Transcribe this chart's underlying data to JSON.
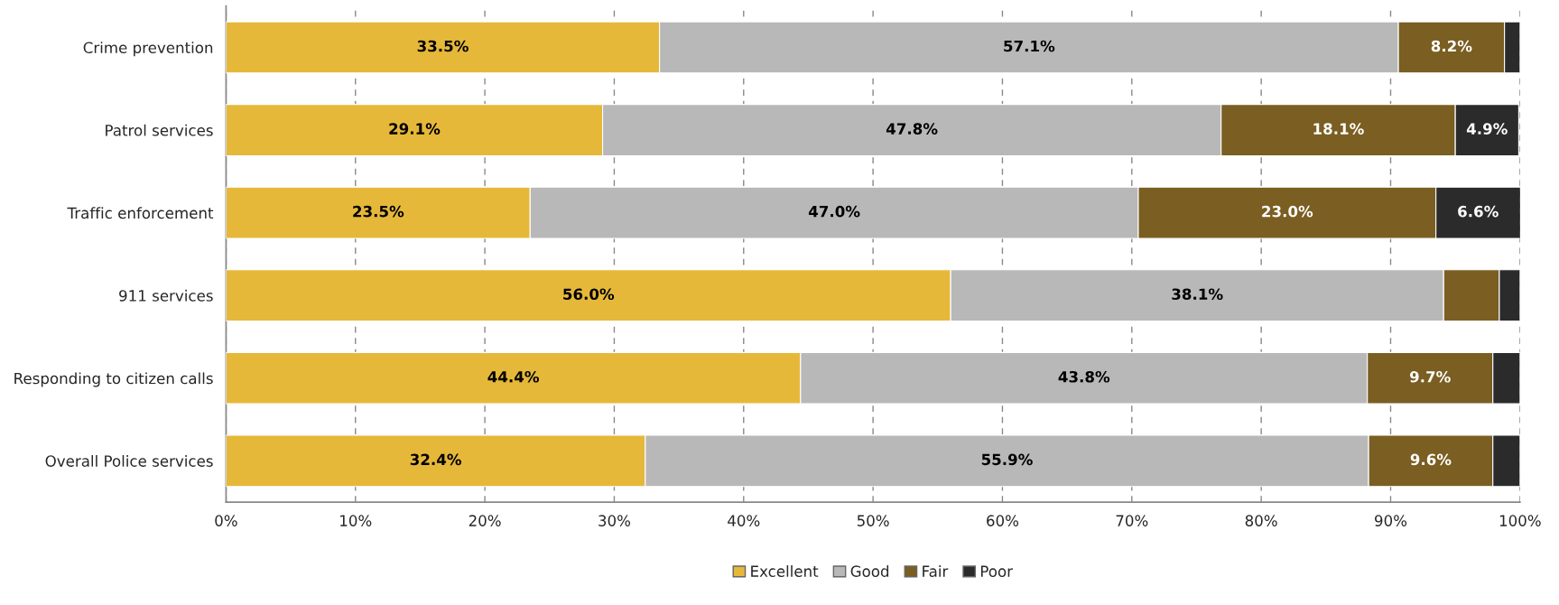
{
  "chart_data": {
    "type": "bar",
    "orientation": "horizontal",
    "stacked": true,
    "categories": [
      "Crime prevention",
      "Patrol services",
      "Traffic enforcement",
      "911 services",
      "Responding to citizen calls",
      "Overall Police services"
    ],
    "series": [
      {
        "name": "Excellent",
        "color": "#e6b83a",
        "values": [
          33.5,
          29.1,
          23.5,
          56.0,
          44.4,
          32.4
        ],
        "value_labels": [
          "33.5%",
          "29.1%",
          "23.5%",
          "56.0%",
          "44.4%",
          "32.4%"
        ]
      },
      {
        "name": "Good",
        "color": "#b8b8b8",
        "values": [
          57.1,
          47.8,
          47.0,
          38.1,
          43.8,
          55.9
        ],
        "value_labels": [
          "57.1%",
          "47.8%",
          "47.0%",
          "38.1%",
          "43.8%",
          "55.9%"
        ]
      },
      {
        "name": "Fair",
        "color": "#7a5e22",
        "values": [
          8.2,
          18.1,
          23.0,
          4.3,
          9.7,
          9.6
        ],
        "value_labels": [
          "8.2%",
          "18.1%",
          "23.0%",
          null,
          "9.7%",
          "9.6%"
        ]
      },
      {
        "name": "Poor",
        "color": "#2b2b2b",
        "values": [
          1.2,
          4.9,
          6.6,
          1.6,
          2.1,
          2.1
        ],
        "value_labels": [
          null,
          "4.9%",
          "6.6%",
          null,
          null,
          null
        ]
      }
    ],
    "xlim": [
      0,
      100
    ],
    "xticks": [
      {
        "value": 0,
        "label": "0%"
      },
      {
        "value": 10,
        "label": "10%"
      },
      {
        "value": 20,
        "label": "20%"
      },
      {
        "value": 30,
        "label": "30%"
      },
      {
        "value": 40,
        "label": "40%"
      },
      {
        "value": 50,
        "label": "50%"
      },
      {
        "value": 60,
        "label": "60%"
      },
      {
        "value": 70,
        "label": "70%"
      },
      {
        "value": 80,
        "label": "80%"
      },
      {
        "value": 90,
        "label": "90%"
      },
      {
        "value": 100,
        "label": "100%"
      }
    ],
    "grid": "x",
    "legend": "bottom"
  }
}
